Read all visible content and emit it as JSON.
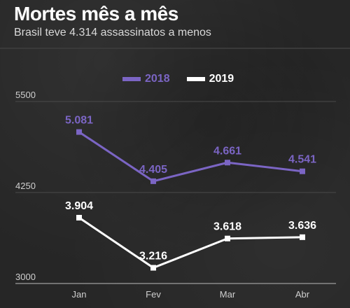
{
  "header": {
    "title": "Mortes mês a mês",
    "subtitle": "Brasil teve 4.314 assassinatos a menos"
  },
  "legend": [
    {
      "label": "2018",
      "color": "#7b65c4"
    },
    {
      "label": "2019",
      "color": "#ffffff"
    }
  ],
  "chart_data": {
    "type": "line",
    "title": "Mortes mês a mês",
    "subtitle": "Brasil teve 4.314 assassinatos a menos",
    "xlabel": "",
    "ylabel": "",
    "categories": [
      "Jan",
      "Fev",
      "Mar",
      "Abr"
    ],
    "ylim": [
      3000,
      5500
    ],
    "yticks": [
      3000,
      4250,
      5500
    ],
    "ytick_labels": [
      "3000",
      "4250",
      "5500"
    ],
    "grid": true,
    "legend_position": "top-center",
    "series": [
      {
        "name": "2018",
        "color": "#7b65c4",
        "values": [
          5081,
          4405,
          4661,
          4541
        ],
        "labels": [
          "5.081",
          "4.405",
          "4.661",
          "4.541"
        ]
      },
      {
        "name": "2019",
        "color": "#ffffff",
        "values": [
          3904,
          3216,
          3618,
          3636
        ],
        "labels": [
          "3.904",
          "3.216",
          "3.618",
          "3.636"
        ]
      }
    ]
  }
}
